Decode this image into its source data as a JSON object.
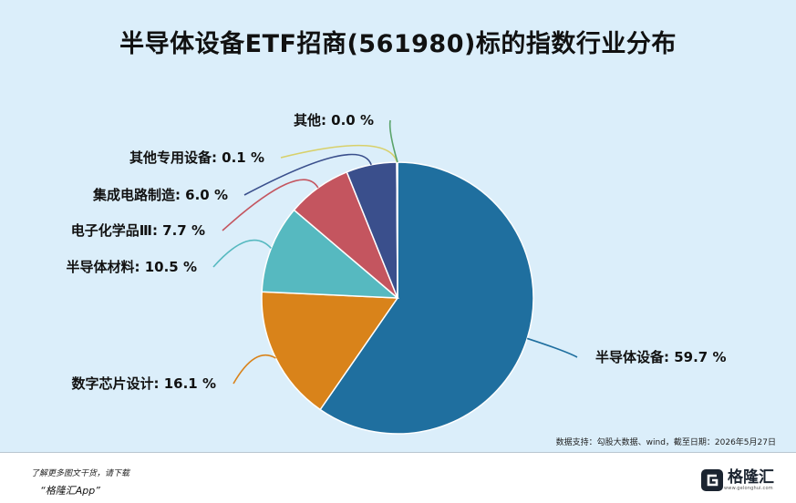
{
  "title": "半导体设备ETF招商(561980)标的指数行业分布",
  "source": "数据支持：勾股大数据、wind，截至日期：2026年5月27日",
  "promo": {
    "line1": "了解更多图文干货，请下载",
    "line2": "“格隆汇App”"
  },
  "brand": {
    "name": "格隆汇",
    "url": "www.gelonghui.com"
  },
  "chart_data": {
    "type": "pie",
    "title": "半导体设备ETF招商(561980)标的指数行业分布",
    "start_angle_deg": 0,
    "direction": "clockwise",
    "slices": [
      {
        "label": "半导体设备",
        "value": 59.7,
        "value_text": "59.7 %",
        "color": "#1f6f9f"
      },
      {
        "label": "数字芯片设计",
        "value": 16.1,
        "value_text": "16.1 %",
        "color": "#d9831a"
      },
      {
        "label": "半导体材料",
        "value": 10.5,
        "value_text": "10.5 %",
        "color": "#56b9c0"
      },
      {
        "label": "电子化学品Ⅲ",
        "value": 7.7,
        "value_text": "7.7 %",
        "color": "#c4555f"
      },
      {
        "label": "集成电路制造",
        "value": 6.0,
        "value_text": "6.0 %",
        "color": "#3a4f8c"
      },
      {
        "label": "其他专用设备",
        "value": 0.1,
        "value_text": "0.1 %",
        "color": "#d8d06a"
      },
      {
        "label": "其他",
        "value": 0.0,
        "value_text": "0.0 %",
        "color": "#5aa36a"
      }
    ]
  }
}
